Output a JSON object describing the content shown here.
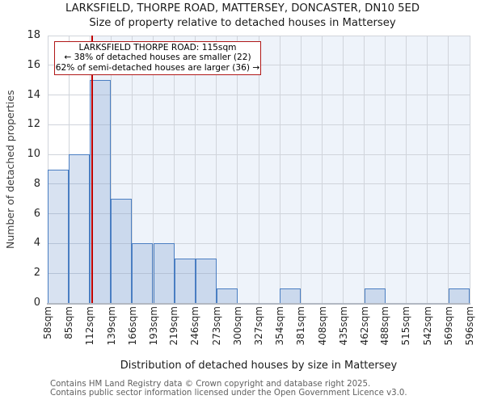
{
  "chart_data": {
    "type": "bar",
    "title": "LARKSFIELD, THORPE ROAD, MATTERSEY, DONCASTER, DN10 5ED",
    "subtitle": "Size of property relative to detached houses in Mattersey",
    "xlabel": "Distribution of detached houses by size in Mattersey",
    "ylabel": "Number of detached properties",
    "bin_edges_sqm": [
      58,
      85,
      112,
      139,
      166,
      193,
      219,
      246,
      273,
      300,
      327,
      354,
      381,
      408,
      435,
      462,
      488,
      515,
      542,
      569,
      596
    ],
    "x_tick_labels": [
      "58sqm",
      "85sqm",
      "112sqm",
      "139sqm",
      "166sqm",
      "193sqm",
      "219sqm",
      "246sqm",
      "273sqm",
      "300sqm",
      "327sqm",
      "354sqm",
      "381sqm",
      "408sqm",
      "435sqm",
      "462sqm",
      "488sqm",
      "515sqm",
      "542sqm",
      "569sqm",
      "596sqm"
    ],
    "values": [
      9,
      10,
      15,
      7,
      4,
      4,
      3,
      3,
      1,
      0,
      0,
      1,
      0,
      0,
      0,
      1,
      0,
      0,
      0,
      1
    ],
    "y_ticks": [
      0,
      2,
      4,
      6,
      8,
      10,
      12,
      14,
      16,
      18
    ],
    "ylim": [
      0,
      18
    ],
    "grid": true,
    "legend": "none",
    "marker": {
      "value_sqm": 115,
      "color": "#c00000"
    },
    "colors": {
      "bar_fill": "rgba(100,140,200,0.25)",
      "bar_border": "#4a7ec2",
      "marker_line": "#c00000",
      "annotation_border": "#b01818",
      "grid": "#d0d4db",
      "plot_bg_right": "#eef3fa",
      "plot_bg_left": "#ffffff",
      "axis_line": "#b2b8c2"
    }
  },
  "annotation": {
    "line1": "LARKSFIELD THORPE ROAD: 115sqm",
    "line2": "← 38% of detached houses are smaller (22)",
    "line3": "62% of semi-detached houses are larger (36) →"
  },
  "footer": {
    "line1": "Contains HM Land Registry data © Crown copyright and database right 2025.",
    "line2": "Contains public sector information licensed under the Open Government Licence v3.0."
  }
}
